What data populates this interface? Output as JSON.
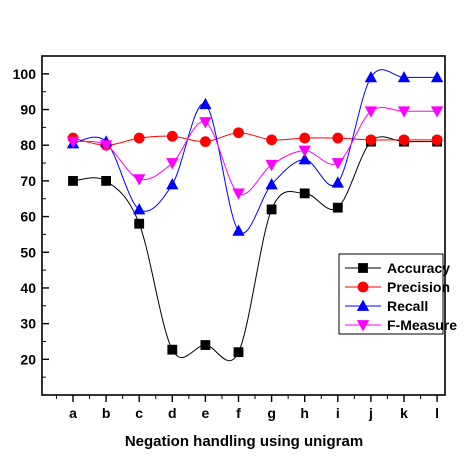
{
  "chart_data": {
    "type": "line",
    "title": "",
    "xlabel": "Negation handling using unigram",
    "ylabel": "",
    "categories": [
      "a",
      "b",
      "c",
      "d",
      "e",
      "f",
      "g",
      "h",
      "i",
      "j",
      "k",
      "l"
    ],
    "ylim": [
      10,
      105
    ],
    "yticks": [
      20,
      30,
      40,
      50,
      60,
      70,
      80,
      90,
      100
    ],
    "grid": false,
    "legend_position": "bottom-right",
    "series": [
      {
        "name": "Accuracy",
        "marker": "square",
        "color": "#000000",
        "values": [
          70,
          70,
          58,
          22.7,
          24,
          22,
          62,
          66.5,
          62.5,
          81,
          81,
          81
        ]
      },
      {
        "name": "Precision",
        "marker": "circle",
        "color": "#ff0000",
        "values": [
          82,
          80,
          82,
          82.5,
          81,
          83.5,
          81.5,
          82,
          82,
          81.5,
          81.5,
          81.5
        ]
      },
      {
        "name": "Recall",
        "marker": "triangle-up",
        "color": "#0000ff",
        "values": [
          80.5,
          81,
          62,
          69,
          91.5,
          56,
          69,
          76,
          69.5,
          99,
          99,
          99
        ]
      },
      {
        "name": "F-Measure",
        "marker": "triangle-down",
        "color": "#ff00ff",
        "values": [
          81,
          80,
          70.5,
          75,
          86.5,
          66.5,
          74.5,
          78.5,
          75,
          89.5,
          89.5,
          89.5
        ]
      }
    ]
  }
}
